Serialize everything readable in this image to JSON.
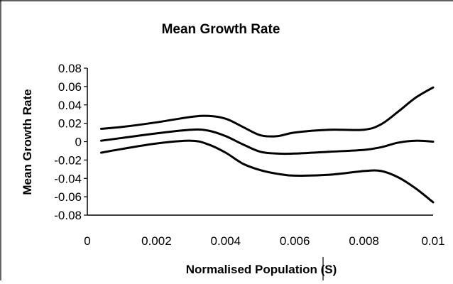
{
  "chart_data": {
    "type": "line",
    "title": "Mean Growth Rate",
    "xlabel": "Normalised Population (S)",
    "ylabel": "Mean Growth Rate",
    "xlim": [
      0,
      0.01
    ],
    "ylim": [
      -0.08,
      0.08
    ],
    "x_ticks": [
      "0",
      "0.002",
      "0.004",
      "0.006",
      "0.008",
      "0.01"
    ],
    "x_tick_values": [
      0,
      0.002,
      0.004,
      0.006,
      0.008,
      0.01
    ],
    "y_ticks": [
      "0.08",
      "0.06",
      "0.04",
      "0.02",
      "0",
      "-0.02",
      "-0.04",
      "-0.06",
      "-0.08"
    ],
    "y_tick_values": [
      0.08,
      0.06,
      0.04,
      0.02,
      0,
      -0.02,
      -0.04,
      -0.06,
      -0.08
    ],
    "grid": false,
    "legend": "none",
    "series": [
      {
        "x": [
          0.0004,
          0.001,
          0.002,
          0.003,
          0.0035,
          0.004,
          0.0045,
          0.005,
          0.0055,
          0.006,
          0.007,
          0.008,
          0.0085,
          0.009,
          0.0095,
          0.01
        ],
        "values": [
          0.014,
          0.016,
          0.021,
          0.027,
          0.028,
          0.025,
          0.016,
          0.007,
          0.006,
          0.01,
          0.013,
          0.013,
          0.019,
          0.033,
          0.048,
          0.059
        ]
      },
      {
        "x": [
          0.0004,
          0.001,
          0.002,
          0.003,
          0.0035,
          0.004,
          0.0045,
          0.005,
          0.0055,
          0.006,
          0.007,
          0.008,
          0.0085,
          0.009,
          0.0095,
          0.01
        ],
        "values": [
          0.001,
          0.004,
          0.009,
          0.013,
          0.012,
          0.006,
          -0.003,
          -0.011,
          -0.013,
          -0.013,
          -0.011,
          -0.009,
          -0.006,
          -0.001,
          0.001,
          0.0
        ]
      },
      {
        "x": [
          0.0004,
          0.001,
          0.002,
          0.003,
          0.0035,
          0.004,
          0.0045,
          0.005,
          0.0055,
          0.006,
          0.007,
          0.008,
          0.0085,
          0.009,
          0.0095,
          0.01
        ],
        "values": [
          -0.012,
          -0.008,
          -0.002,
          0.001,
          -0.003,
          -0.012,
          -0.024,
          -0.031,
          -0.035,
          -0.037,
          -0.036,
          -0.032,
          -0.032,
          -0.039,
          -0.051,
          -0.066
        ]
      }
    ]
  }
}
